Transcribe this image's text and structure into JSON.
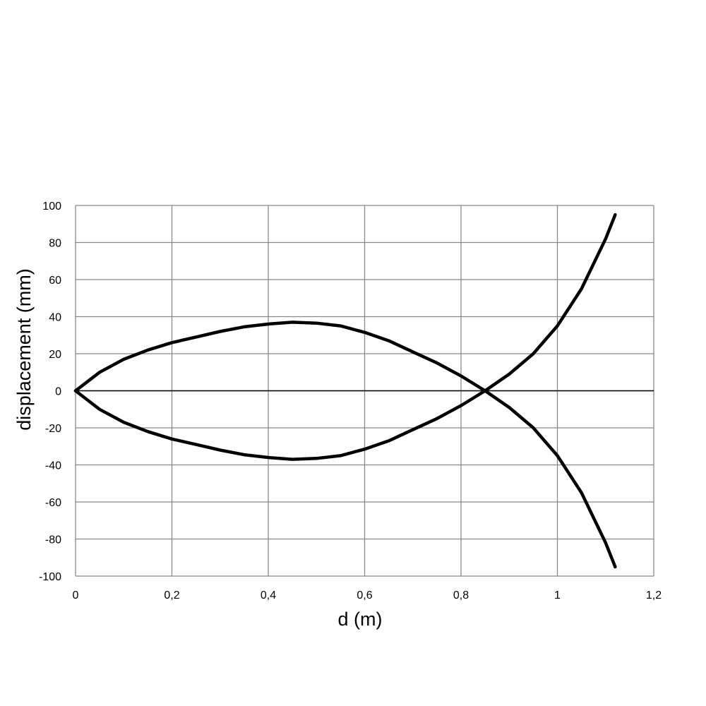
{
  "chart_data": {
    "type": "line",
    "x_label": "d (m)",
    "y_label": "displacement (mm)",
    "x": [
      0,
      0.05,
      0.1,
      0.15,
      0.2,
      0.25,
      0.3,
      0.35,
      0.4,
      0.45,
      0.5,
      0.55,
      0.6,
      0.65,
      0.7,
      0.75,
      0.8,
      0.85,
      0.9,
      0.95,
      1.0,
      1.05,
      1.1,
      1.12
    ],
    "series": [
      {
        "color": "#000000",
        "values": [
          0,
          10,
          17,
          22,
          26,
          29,
          32,
          34.5,
          36,
          37,
          36.5,
          35,
          31.5,
          27,
          21,
          15,
          8,
          0,
          -9,
          -20,
          -35,
          -55,
          -82,
          -95
        ]
      },
      {
        "color": "#000000",
        "values": [
          0,
          -10,
          -17,
          -22,
          -26,
          -29,
          -32,
          -34.5,
          -36,
          -37,
          -36.5,
          -35,
          -31.5,
          -27,
          -21,
          -15,
          -8,
          0,
          9,
          20,
          35,
          55,
          82,
          95
        ]
      }
    ],
    "xlim": [
      0,
      1.2
    ],
    "xticks": [
      0,
      {
        "value": 0.2,
        "label": "0,2"
      },
      {
        "value": 0.4,
        "label": "0,4"
      },
      {
        "value": 0.6,
        "label": "0,6"
      },
      {
        "value": 0.8,
        "label": "0,8"
      },
      1,
      {
        "value": 1.2,
        "label": "1,2"
      }
    ],
    "ylim": [
      -100,
      100
    ],
    "yticks": [
      -100,
      -80,
      -60,
      -40,
      -20,
      0,
      20,
      40,
      60,
      80,
      100
    ],
    "grid": true
  }
}
